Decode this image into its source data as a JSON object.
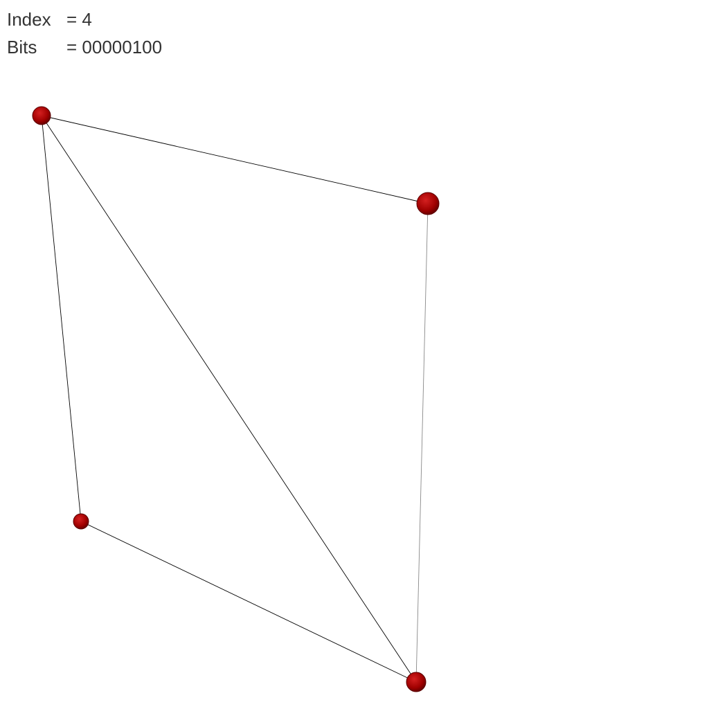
{
  "info": {
    "index_label": "Index",
    "index_value": "= 4",
    "bits_label": "Bits",
    "bits_value": "= 00000100"
  },
  "graph": {
    "node_color": "#b00000",
    "node_stroke": "#5a0000",
    "edge_color": "#000000",
    "node_count": 4,
    "edge_count": 5
  }
}
